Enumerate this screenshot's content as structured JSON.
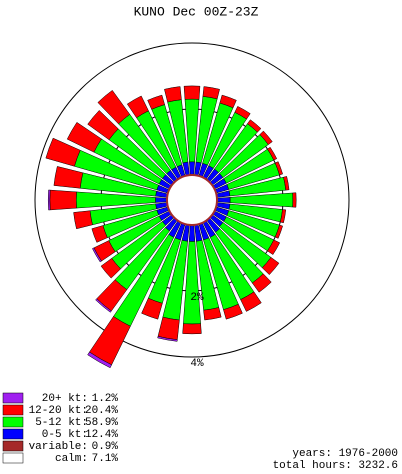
{
  "chart_data": {
    "type": "windrose",
    "title": "KUNO Dec 00Z-23Z",
    "series": [
      {
        "name": "0-5 kt:",
        "color": "#0000ff",
        "total": 12.4,
        "total_label": "12.4%",
        "values": [
          0.4,
          0.4,
          0.4,
          0.4,
          0.4,
          0.4,
          0.4,
          0.4,
          0.4,
          0.4,
          0.4,
          0.4,
          0.4,
          0.4,
          0.45,
          0.5,
          0.5,
          0.5,
          0.5,
          0.5,
          0.5,
          0.5,
          0.4,
          0.35,
          0.35,
          0.35,
          0.35,
          0.35,
          0.35,
          0.35,
          0.35,
          0.35,
          0.35,
          0.35,
          0.35,
          0.4
        ]
      },
      {
        "name": "5-12 kt:",
        "color": "#00ff00",
        "total": 58.9,
        "total_label": "58.9%",
        "values": [
          1.9,
          2.0,
          1.9,
          1.8,
          1.7,
          1.7,
          1.6,
          1.6,
          1.7,
          1.9,
          1.6,
          1.6,
          1.6,
          1.8,
          1.9,
          2.1,
          2.2,
          2.1,
          2.5,
          2.4,
          2.0,
          3.0,
          2.2,
          1.9,
          1.7,
          1.7,
          2.0,
          2.4,
          2.3,
          2.6,
          2.2,
          2.0,
          2.1,
          1.9,
          1.9,
          1.9
        ]
      },
      {
        "name": "12-20 kt:",
        "color": "#ff0000",
        "total": 20.4,
        "total_label": "20.4%",
        "values": [
          0.4,
          0.3,
          0.25,
          0.2,
          0.15,
          0.15,
          0.1,
          0.1,
          0.1,
          0.1,
          0.1,
          0.1,
          0.2,
          0.3,
          0.35,
          0.4,
          0.3,
          0.3,
          0.3,
          0.6,
          0.5,
          1.3,
          0.8,
          0.4,
          0.5,
          0.35,
          0.5,
          0.8,
          0.8,
          0.9,
          0.9,
          0.8,
          0.9,
          0.5,
          0.3,
          0.4
        ]
      },
      {
        "name": "20+ kt:",
        "color": "#a020f0",
        "total": 1.2,
        "total_label": "1.2%",
        "values": [
          0,
          0,
          0,
          0,
          0,
          0,
          0,
          0,
          0,
          0,
          0,
          0,
          0,
          0,
          0,
          0,
          0,
          0,
          0,
          0.05,
          0,
          0.1,
          0.05,
          0,
          0.05,
          0,
          0,
          0.05,
          0,
          0,
          0,
          0,
          0,
          0,
          0,
          0
        ]
      }
    ],
    "extras": [
      {
        "name": "variable:",
        "color": "#a52a2a",
        "total": 0.9,
        "total_label": "0.9%"
      },
      {
        "name": "calm:",
        "color": "#ffffff",
        "total": 7.1,
        "total_label": "7.1%"
      }
    ],
    "rings": [
      {
        "value": 2,
        "label": "2%"
      },
      {
        "value": 4,
        "label": "4%"
      }
    ],
    "footer": [
      "years: 1976-2000",
      "total hours: 3232.6"
    ]
  }
}
